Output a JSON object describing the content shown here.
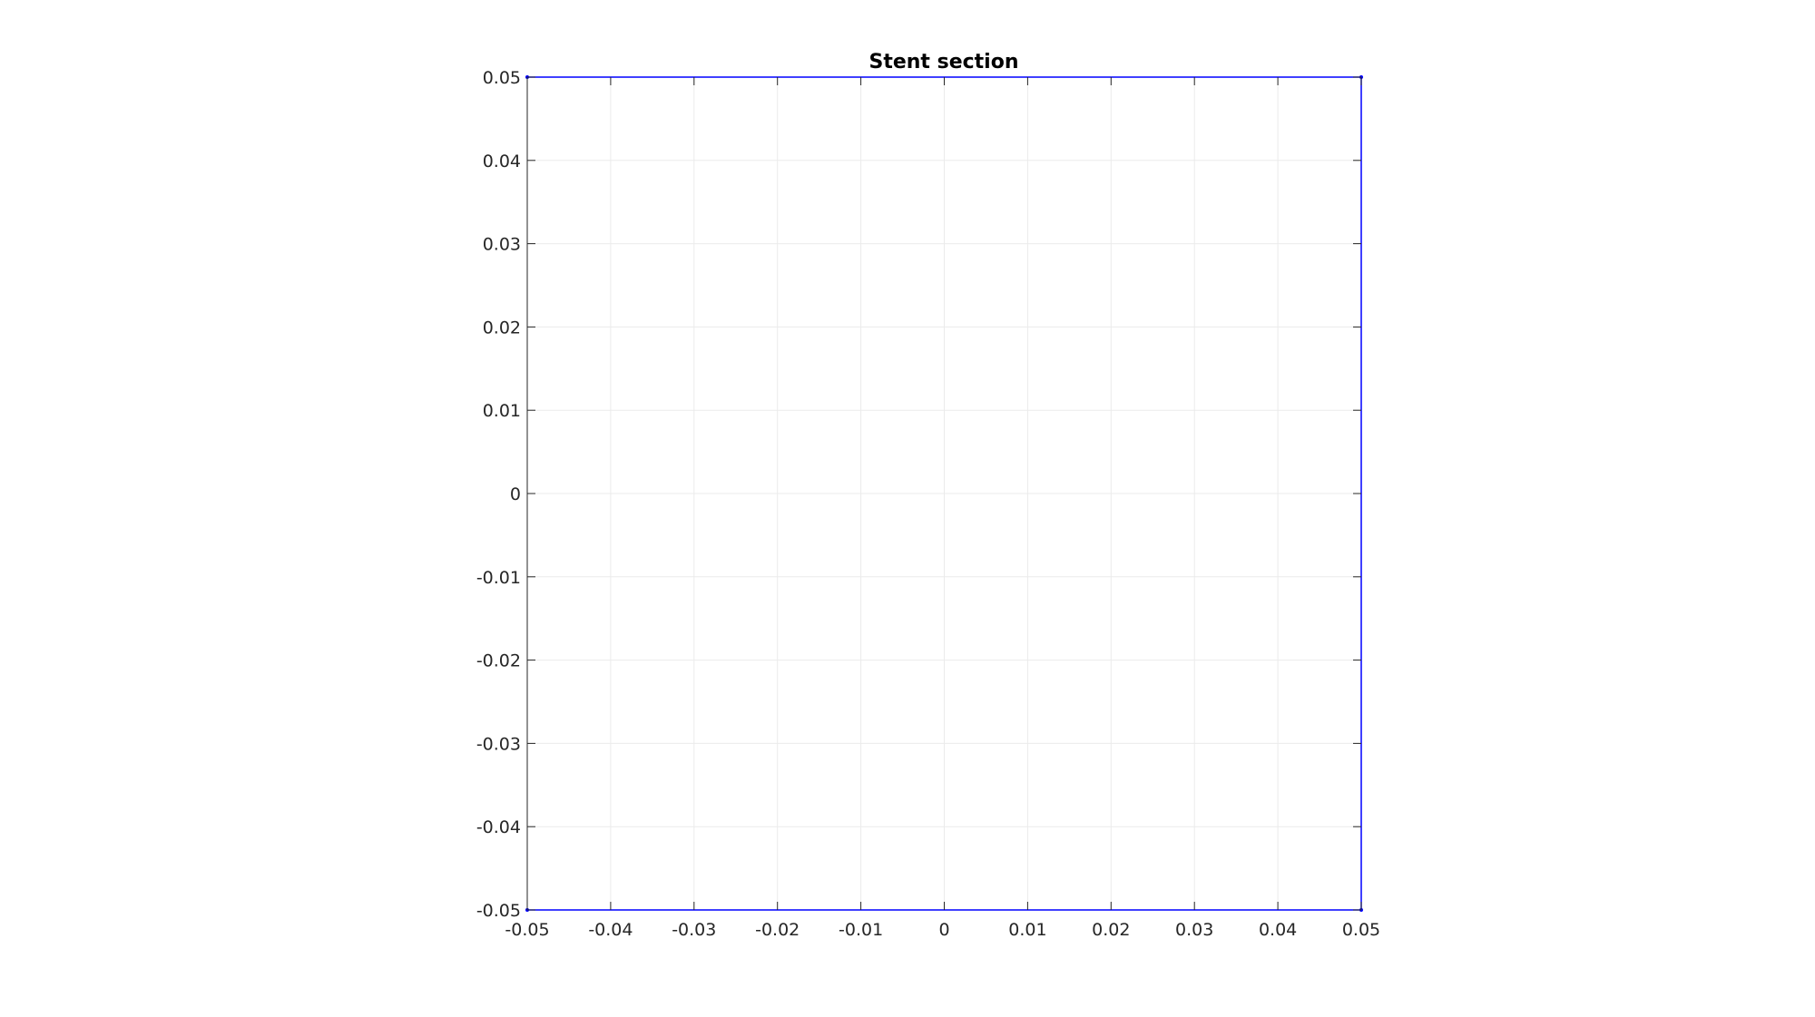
{
  "chart_data": {
    "type": "line",
    "title": "Stent section",
    "xlabel": "",
    "ylabel": "",
    "xlim": [
      -0.05,
      0.05
    ],
    "ylim": [
      -0.05,
      0.05
    ],
    "xticks": [
      -0.05,
      -0.04,
      -0.03,
      -0.02,
      -0.01,
      0,
      0.01,
      0.02,
      0.03,
      0.04,
      0.05
    ],
    "yticks": [
      -0.05,
      -0.04,
      -0.03,
      -0.02,
      -0.01,
      0,
      0.01,
      0.02,
      0.03,
      0.04,
      0.05
    ],
    "xtick_labels": [
      "-0.05",
      "-0.04",
      "-0.03",
      "-0.02",
      "-0.01",
      "0",
      "0.01",
      "0.02",
      "0.03",
      "0.04",
      "0.05"
    ],
    "ytick_labels": [
      "-0.05",
      "-0.04",
      "-0.03",
      "-0.02",
      "-0.01",
      "0",
      "0.01",
      "0.02",
      "0.03",
      "0.04",
      "0.05"
    ],
    "grid": true,
    "series": [
      {
        "color": "#0000ff",
        "x": [
          -0.05,
          0.05,
          0.05,
          -0.05
        ],
        "y": [
          0.05,
          0.05,
          -0.05,
          -0.05
        ]
      }
    ]
  }
}
